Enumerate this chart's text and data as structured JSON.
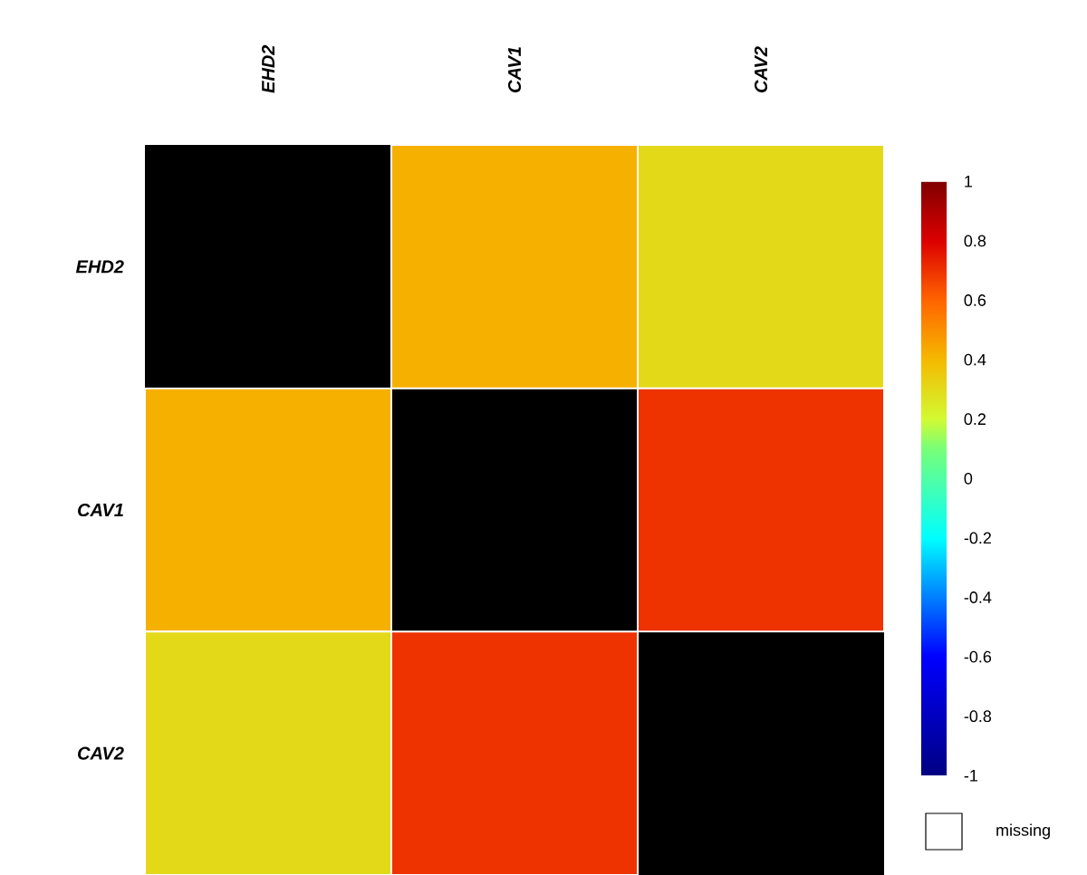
{
  "chart_data": {
    "type": "heatmap",
    "categories": [
      "EHD2",
      "CAV1",
      "CAV2"
    ],
    "y_categories": [
      "EHD2",
      "CAV1",
      "CAV2"
    ],
    "cells": [
      [
        null,
        0.42,
        0.3
      ],
      [
        0.42,
        null,
        0.7
      ],
      [
        0.3,
        0.7,
        null
      ]
    ],
    "clim": [
      -1,
      1
    ],
    "cticks": [
      -1,
      -0.8,
      -0.6,
      -0.4,
      -0.2,
      0,
      0.2,
      0.4,
      0.6,
      0.8,
      1
    ],
    "annotations": [
      "missing"
    ]
  }
}
